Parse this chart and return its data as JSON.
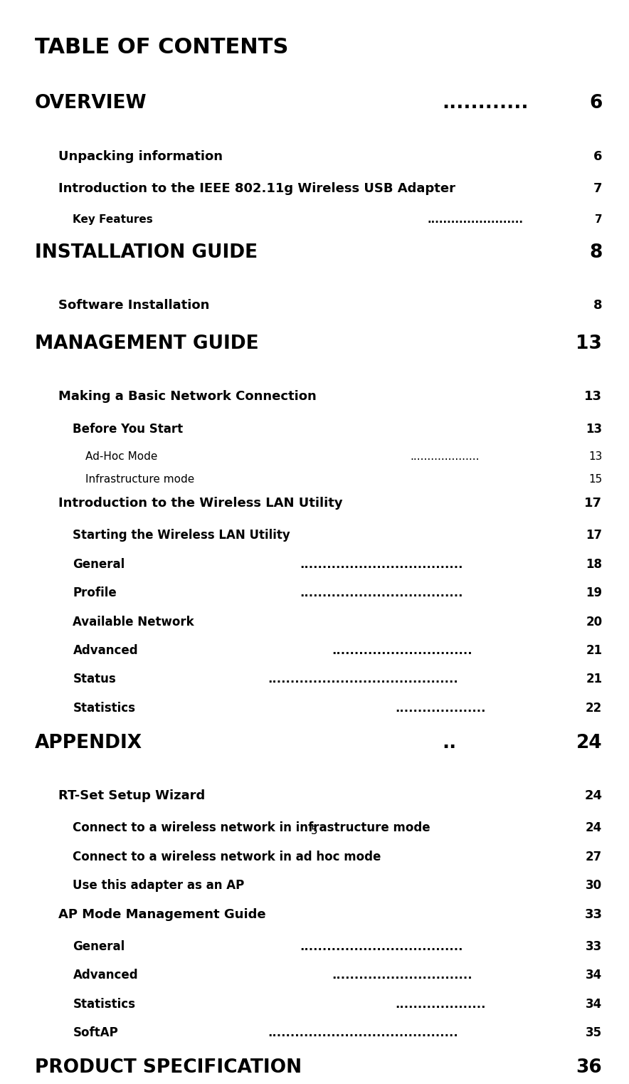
{
  "bg_color": "#ffffff",
  "page_number": "5",
  "title": "TABLE OF CONTENTS",
  "entries": [
    {
      "text": "OVERVIEW",
      "dots": true,
      "page": "6",
      "level": 0,
      "style": "h1",
      "top_space": true
    },
    {
      "text": "Unpacking information",
      "dots": true,
      "page": "6",
      "level": 1,
      "style": "sc"
    },
    {
      "text": "Introduction to the IEEE 802.11g Wireless USB Adapter",
      "dots": true,
      "page": "7",
      "level": 1,
      "style": "sc_ieee"
    },
    {
      "text": "Key Features",
      "dots": true,
      "page": "7",
      "level": 2,
      "style": "bold_small"
    },
    {
      "text": "INSTALLATION GUIDE",
      "dots": true,
      "page": "8",
      "level": 0,
      "style": "h1",
      "top_space": true
    },
    {
      "text": "Software Installation",
      "dots": true,
      "page": "8",
      "level": 1,
      "style": "sc"
    },
    {
      "text": "MANAGEMENT GUIDE",
      "dots": true,
      "page": "13",
      "level": 0,
      "style": "h1",
      "top_space": true
    },
    {
      "text": "Making a Basic Network Connection",
      "dots": true,
      "page": "13",
      "level": 1,
      "style": "sc"
    },
    {
      "text": "Before You Start",
      "dots": true,
      "page": "13",
      "level": 2,
      "style": "bold_med"
    },
    {
      "text": "Ad-Hoc Mode",
      "dots": true,
      "page": "13",
      "level": 3,
      "style": "normal"
    },
    {
      "text": "Infrastructure mode",
      "dots": true,
      "page": "15",
      "level": 3,
      "style": "normal"
    },
    {
      "text": "Introduction to the Wireless LAN Utility",
      "dots": true,
      "page": "17",
      "level": 1,
      "style": "sc"
    },
    {
      "text": "Starting the Wireless LAN Utility",
      "dots": true,
      "page": "17",
      "level": 2,
      "style": "bold_med"
    },
    {
      "text": "General",
      "dots": true,
      "page": "18",
      "level": 2,
      "style": "bold_med"
    },
    {
      "text": "Profile",
      "dots": true,
      "page": "19",
      "level": 2,
      "style": "bold_med"
    },
    {
      "text": "Available Network",
      "dots": true,
      "page": "20",
      "level": 2,
      "style": "bold_med"
    },
    {
      "text": "Advanced",
      "dots": true,
      "page": "21",
      "level": 2,
      "style": "bold_med"
    },
    {
      "text": "Status",
      "dots": true,
      "page": "21",
      "level": 2,
      "style": "bold_med"
    },
    {
      "text": "Statistics",
      "dots": true,
      "page": "22",
      "level": 2,
      "style": "bold_med"
    },
    {
      "text": "APPENDIX",
      "dots": true,
      "page": "24",
      "level": 0,
      "style": "h1",
      "top_space": true
    },
    {
      "text": "RT-Set Setup Wizard",
      "dots": true,
      "page": "24",
      "level": 1,
      "style": "sc"
    },
    {
      "text": "Connect to a wireless network in infrastructure mode",
      "dots": true,
      "page": "24",
      "level": 2,
      "style": "bold_med"
    },
    {
      "text": "Connect to a wireless network in ad hoc mode",
      "dots": true,
      "page": "27",
      "level": 2,
      "style": "bold_med"
    },
    {
      "text": "Use this adapter as an AP",
      "dots": true,
      "page": "30",
      "level": 2,
      "style": "bold_med"
    },
    {
      "text": "AP Mode Management Guide",
      "dots": true,
      "page": "33",
      "level": 1,
      "style": "sc_ap"
    },
    {
      "text": "General",
      "dots": true,
      "page": "33",
      "level": 2,
      "style": "bold_med"
    },
    {
      "text": "Advanced",
      "dots": true,
      "page": "34",
      "level": 2,
      "style": "bold_med"
    },
    {
      "text": "Statistics",
      "dots": true,
      "page": "34",
      "level": 2,
      "style": "bold_med"
    },
    {
      "text": "SoftAP",
      "dots": true,
      "page": "35",
      "level": 2,
      "style": "bold_med"
    },
    {
      "text": "PRODUCT SPECIFICATION",
      "dots": true,
      "page": "36",
      "level": 0,
      "style": "h1",
      "top_space": true
    }
  ]
}
